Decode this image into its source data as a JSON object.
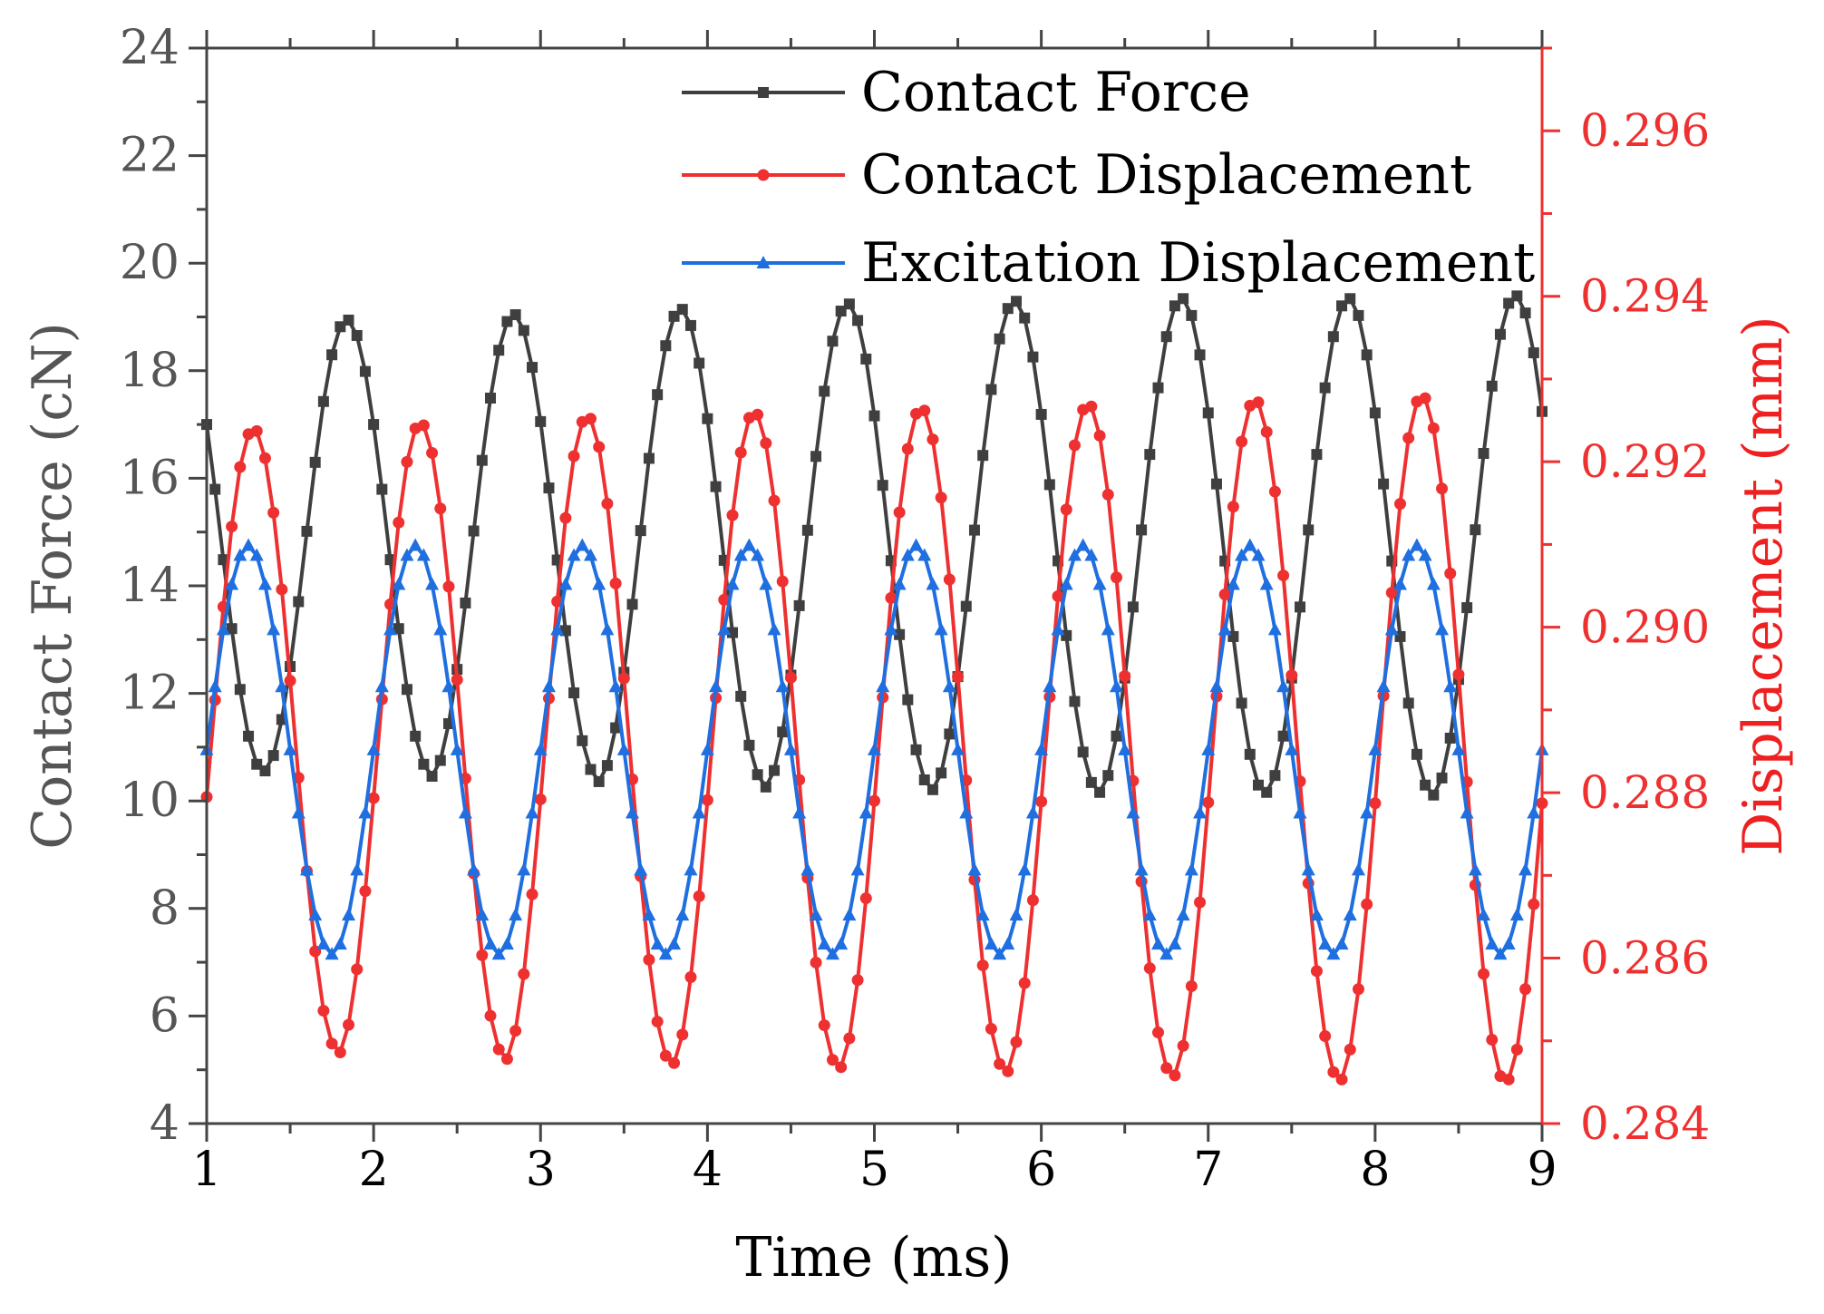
{
  "chart_data": {
    "type": "line",
    "title": "",
    "xlabel": "Time (ms)",
    "ylabel": "Contact Force (cN)",
    "y2label": "Displacement (mm)",
    "xlim": [
      1,
      9
    ],
    "ylim": [
      4,
      24
    ],
    "y2lim": [
      0.284,
      0.297
    ],
    "xticks": [
      "1",
      "2",
      "3",
      "4",
      "5",
      "6",
      "7",
      "8",
      "9"
    ],
    "yticks": [
      "4",
      "6",
      "8",
      "10",
      "12",
      "14",
      "16",
      "18",
      "20",
      "22",
      "24"
    ],
    "y2ticks": [
      "0.284",
      "0.286",
      "0.288",
      "0.290",
      "0.292",
      "0.294",
      "0.296"
    ],
    "grid": false,
    "legend_position": "top-center",
    "samples_per_ms": 20,
    "series": [
      {
        "name": "Contact Force",
        "axis": "left",
        "marker": "square",
        "color": "#3f3f3f",
        "model": {
          "form": "offset + amplitude*cos(2*pi*(t - peak_time)/period)",
          "peak_times": [
            1.84,
            2.84,
            3.84,
            4.84,
            5.84,
            6.84,
            7.84,
            8.84
          ],
          "period": 1.0,
          "offset": 14.75,
          "amplitude": [
            4.2,
            4.3,
            4.4,
            4.5,
            4.55,
            4.6,
            4.6,
            4.65
          ]
        }
      },
      {
        "name": "Contact Displacement",
        "axis": "right",
        "marker": "circle",
        "color": "#ee3030",
        "model": {
          "form": "offset + amplitude*cos(2*pi*(t - peak_time)/period)",
          "peak_times": [
            1.28,
            2.28,
            3.28,
            4.28,
            5.28,
            6.28,
            7.28,
            8.28
          ],
          "period": 1.0,
          "offset": 0.28865,
          "amplitude": [
            0.00375,
            0.00382,
            0.0039,
            0.00395,
            0.004,
            0.00405,
            0.0041,
            0.00415
          ]
        }
      },
      {
        "name": "Excitation Displacement",
        "axis": "left",
        "marker": "triangle",
        "color": "#1f6fe0",
        "model": {
          "form": "offset + amplitude*cos(2*pi*(t - peak_time)/period)",
          "peak_times": [
            1.25,
            2.25,
            3.25,
            4.25,
            5.25,
            6.25,
            7.25,
            8.25
          ],
          "period": 1.0,
          "offset": 10.95,
          "amplitude": [
            3.8,
            3.8,
            3.8,
            3.8,
            3.8,
            3.8,
            3.8,
            3.8
          ]
        }
      }
    ]
  }
}
